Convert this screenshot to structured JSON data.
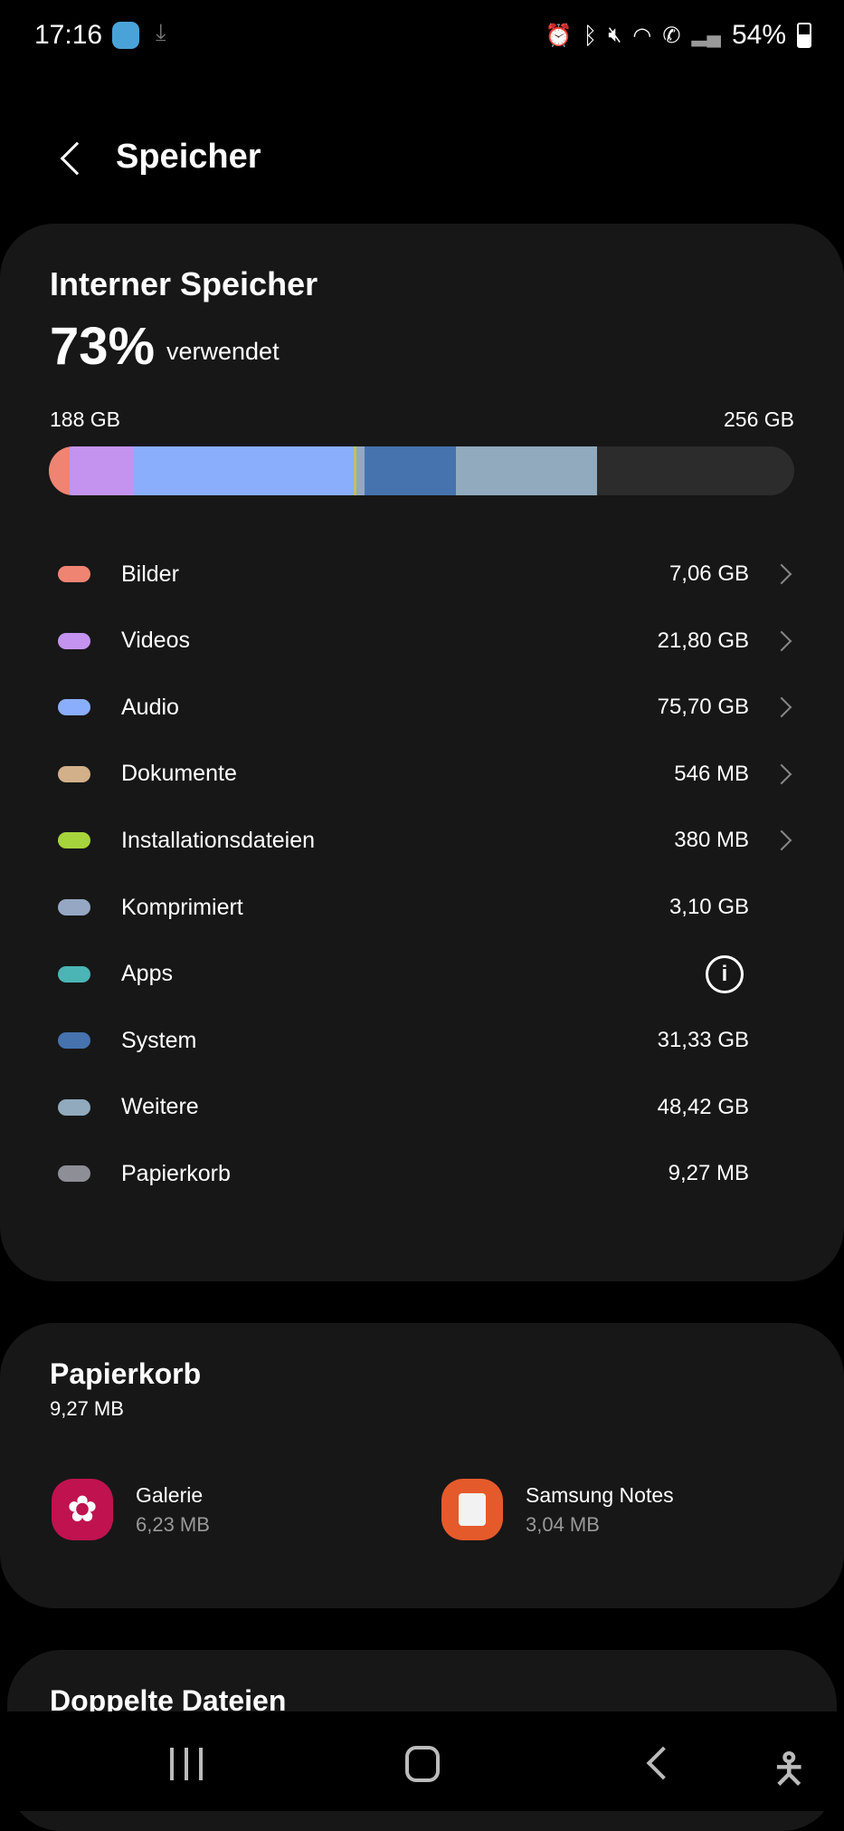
{
  "status_bar": {
    "time": "17:16",
    "battery": "54%",
    "icons": [
      "game-app-icon",
      "download-icon",
      "alarm-icon",
      "bluetooth-icon",
      "mute-icon",
      "wifi-icon",
      "wifi-call-icon",
      "signal-icon",
      "battery-icon"
    ]
  },
  "header": {
    "title": "Speicher"
  },
  "internal": {
    "title": "Interner Speicher",
    "percent": "73%",
    "percent_label": "verwendet",
    "used": "188 GB",
    "total": "256 GB",
    "used_fraction": 0.73,
    "categories": [
      {
        "label": "Bilder",
        "value": "7,06 GB",
        "gb": 7.06,
        "color": "#f08472",
        "chevron": true
      },
      {
        "label": "Videos",
        "value": "21,80 GB",
        "gb": 21.8,
        "color": "#c493f0",
        "chevron": true
      },
      {
        "label": "Audio",
        "value": "75,70 GB",
        "gb": 75.7,
        "color": "#8aaefc",
        "chevron": true
      },
      {
        "label": "Dokumente",
        "value": "546 MB",
        "gb": 0.546,
        "color": "#d1b08a",
        "chevron": true
      },
      {
        "label": "Installationsdateien",
        "value": "380 MB",
        "gb": 0.38,
        "color": "#a6d43c",
        "chevron": true
      },
      {
        "label": "Komprimiert",
        "value": "3,10 GB",
        "gb": 3.1,
        "color": "#96a7c4",
        "chevron": false
      },
      {
        "label": "Apps",
        "value": "",
        "gb": 0,
        "color": "#4bb5b5",
        "chevron": false,
        "info": true
      },
      {
        "label": "System",
        "value": "31,33 GB",
        "gb": 31.33,
        "color": "#4673ad",
        "chevron": false
      },
      {
        "label": "Weitere",
        "value": "48,42 GB",
        "gb": 48.42,
        "color": "#91aabd",
        "chevron": false
      },
      {
        "label": "Papierkorb",
        "value": "9,27 MB",
        "gb": 0.00927,
        "color": "#8e8e96",
        "chevron": false
      }
    ]
  },
  "trash": {
    "title": "Papierkorb",
    "size": "9,27 MB",
    "apps": [
      {
        "name": "Galerie",
        "size": "6,23 MB",
        "color": "#c0124f",
        "icon": "flower-icon"
      },
      {
        "name": "Samsung Notes",
        "size": "3,04 MB",
        "color": "#e55a2b",
        "icon": "notes-icon"
      }
    ]
  },
  "duplicates": {
    "title": "Doppelte Dateien"
  },
  "nav": {
    "icons": [
      "recents-icon",
      "home-icon",
      "back-icon",
      "accessibility-icon"
    ]
  }
}
